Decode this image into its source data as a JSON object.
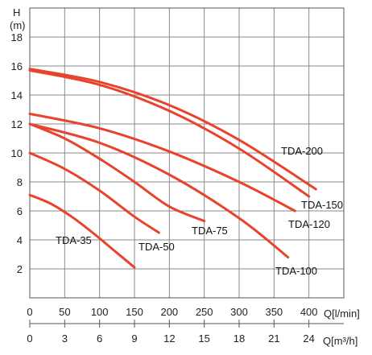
{
  "chart_data": {
    "type": "line",
    "y_axis": {
      "label": "H",
      "unit": "(m)",
      "ticks": [
        "2",
        "4",
        "6",
        "8",
        "10",
        "12",
        "14",
        "16",
        "18"
      ],
      "range": [
        0,
        20
      ]
    },
    "x_axis": {
      "unit": "Q[l/min]",
      "ticks": [
        "0",
        "50",
        "100",
        "150",
        "200",
        "250",
        "300",
        "350",
        "400"
      ],
      "range": [
        0,
        450
      ]
    },
    "x2_axis": {
      "unit": "Q[m³/h]",
      "ticks": [
        "0",
        "3",
        "6",
        "9",
        "12",
        "15",
        "18",
        "21",
        "24"
      ],
      "values": [
        0,
        3,
        6,
        9,
        12,
        15,
        18,
        21,
        24
      ]
    },
    "grid": true,
    "curve_color": "#e8432d",
    "series": [
      {
        "name": "TDA-35",
        "x": [
          0,
          30,
          60,
          90,
          120,
          150
        ],
        "y": [
          7.1,
          6.5,
          5.6,
          4.5,
          3.3,
          2.1
        ]
      },
      {
        "name": "TDA-50",
        "x": [
          0,
          50,
          100,
          150,
          185
        ],
        "y": [
          10.0,
          8.9,
          7.4,
          5.6,
          4.5
        ]
      },
      {
        "name": "TDA-75",
        "x": [
          0,
          50,
          100,
          150,
          200,
          250
        ],
        "y": [
          12.0,
          11.0,
          9.6,
          8.0,
          6.3,
          5.3
        ]
      },
      {
        "name": "TDA-100",
        "x": [
          0,
          100,
          200,
          300,
          370
        ],
        "y": [
          12.0,
          10.7,
          8.5,
          5.5,
          2.8
        ]
      },
      {
        "name": "TDA-120",
        "x": [
          0,
          100,
          200,
          300,
          380
        ],
        "y": [
          12.7,
          11.7,
          10.1,
          8.0,
          6.0
        ]
      },
      {
        "name": "TDA-150",
        "x": [
          0,
          100,
          200,
          300,
          400
        ],
        "y": [
          15.7,
          14.7,
          12.9,
          10.3,
          7.0
        ]
      },
      {
        "name": "TDA-200",
        "x": [
          0,
          100,
          200,
          300,
          410
        ],
        "y": [
          15.8,
          14.9,
          13.3,
          10.9,
          7.5
        ]
      }
    ]
  }
}
